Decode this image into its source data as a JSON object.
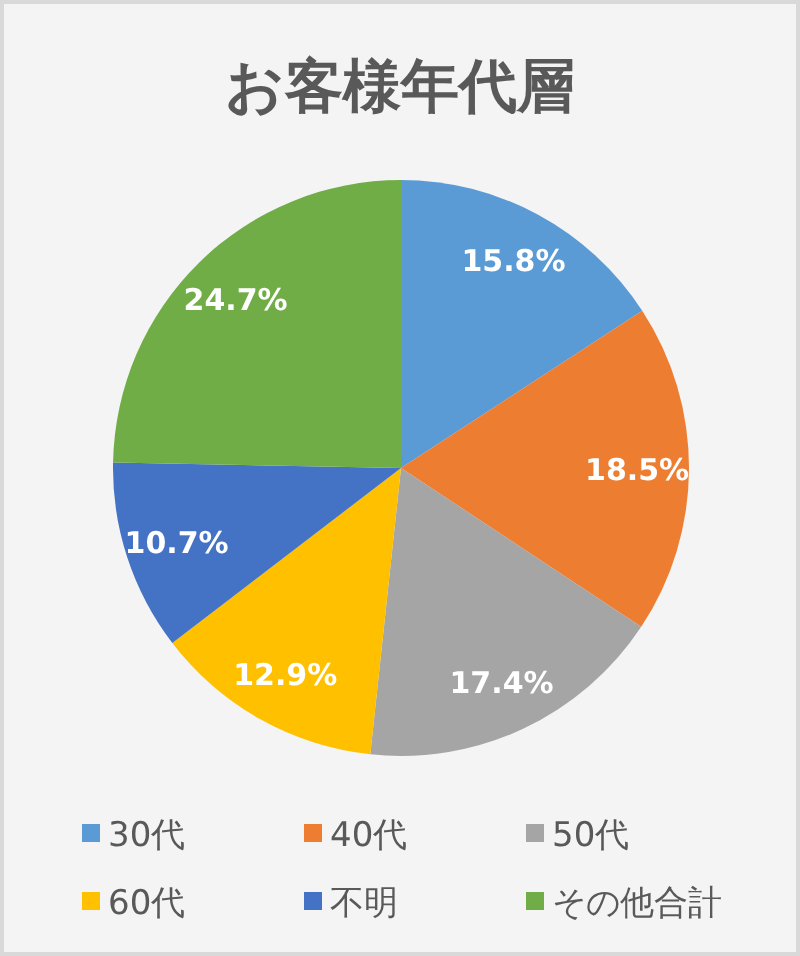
{
  "chart_data": {
    "type": "pie",
    "title": "お客様年代層",
    "categories": [
      "30代",
      "40代",
      "50代",
      "60代",
      "不明",
      "その他合計"
    ],
    "values": [
      15.8,
      18.5,
      17.4,
      12.9,
      10.7,
      24.7
    ],
    "colors": [
      "#5b9bd5",
      "#ed7d31",
      "#a5a5a5",
      "#ffc000",
      "#4472c4",
      "#70ad47"
    ],
    "value_labels": [
      "15.8%",
      "18.5%",
      "17.4%",
      "12.9%",
      "10.7%",
      "24.7%"
    ],
    "legend": "bottom"
  }
}
